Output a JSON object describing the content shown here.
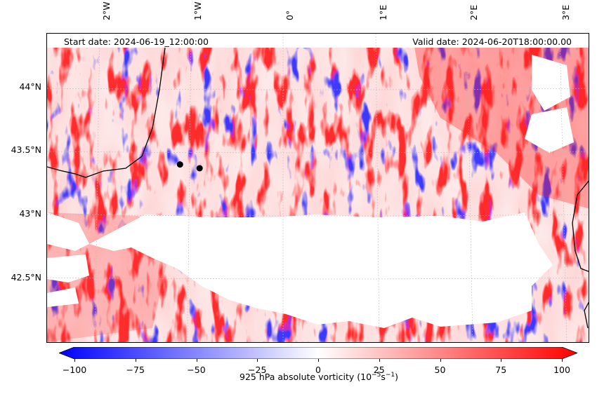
{
  "map": {
    "start_date": "Start date: 2024-06-19_12:00:00",
    "valid_date": "Valid date: 2024-06-20T18:00:00.00",
    "lon_labels": [
      "2°W",
      "1°W",
      "0°",
      "1°E",
      "2°E",
      "3°E"
    ],
    "lat_labels": [
      "44°N",
      "43.5°N",
      "43°N",
      "42.5°N"
    ],
    "field": "absolute vorticity at 925 hPa",
    "colormap": {
      "negative": "#0000ff",
      "zero": "#ffffff",
      "positive": "#ff0000"
    },
    "coastline_color": "#000000",
    "markers": [
      {
        "name": "marker-1",
        "lon": -1.13,
        "lat": 43.39
      },
      {
        "name": "marker-2",
        "lon": -0.92,
        "lat": 43.36
      }
    ],
    "extent": {
      "lon": [
        -2.55,
        3.25
      ],
      "lat": [
        41.98,
        44.42
      ]
    }
  },
  "colorbar": {
    "ticks": [
      "−100",
      "−75",
      "−50",
      "−25",
      "0",
      "25",
      "50",
      "75",
      "100"
    ],
    "range": [
      -100,
      100
    ],
    "label_prefix": "925 hPa absolute vorticity (10",
    "label_exp": "−5",
    "label_mid": "s",
    "label_exp2": "−1",
    "label_suffix": ")"
  }
}
